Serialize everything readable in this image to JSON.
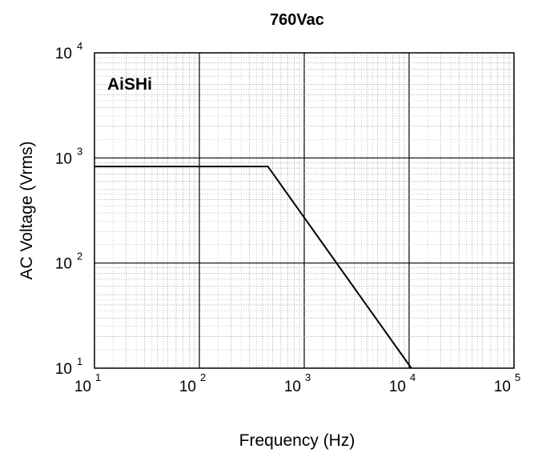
{
  "chart_data": {
    "type": "line",
    "title": "760Vac",
    "xlabel": "Frequency (Hz)",
    "ylabel": "AC Voltage (Vrms)",
    "xscale": "log",
    "yscale": "log",
    "xlim": [
      10,
      100000
    ],
    "ylim": [
      10,
      10000
    ],
    "x_ticks": [
      {
        "base": "10",
        "exp": "1"
      },
      {
        "base": "10",
        "exp": "2"
      },
      {
        "base": "10",
        "exp": "3"
      },
      {
        "base": "10",
        "exp": "4"
      },
      {
        "base": "10",
        "exp": "5"
      }
    ],
    "y_ticks": [
      {
        "base": "10",
        "exp": "1"
      },
      {
        "base": "10",
        "exp": "2"
      },
      {
        "base": "10",
        "exp": "3"
      },
      {
        "base": "10",
        "exp": "4"
      }
    ],
    "grid": true,
    "logo": "AiSHi",
    "series": [
      {
        "x": [
          10,
          450,
          10500
        ],
        "y": [
          830,
          830,
          10
        ]
      }
    ]
  },
  "colors": {
    "line": "#000000",
    "major_grid": "#000000",
    "minor_grid": "#9a9a9a"
  }
}
